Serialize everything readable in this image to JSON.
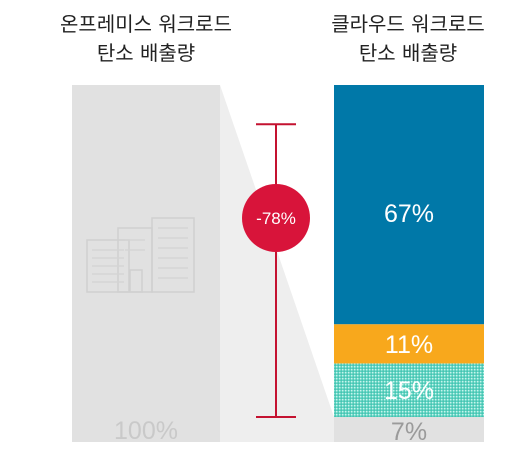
{
  "chart_data": {
    "type": "bar",
    "categories": [
      "온프레미스 워크로드\n탄소 배출량",
      "클라우드 워크로드\n탄소 배출량"
    ],
    "onprem": {
      "title_lines": [
        "온프레미스 워크로드",
        "탄소 배출량"
      ],
      "value": 100,
      "label": "100%",
      "color": "#e1e1e1",
      "label_color": "#c9c9c9",
      "icon": "office-buildings-icon"
    },
    "cloud": {
      "title_lines": [
        "클라우드 워크로드",
        "탄소 배출량"
      ],
      "segments": [
        {
          "value": 67,
          "label": "67%",
          "color": "#0078a8",
          "label_color": "#ffffff"
        },
        {
          "value": 11,
          "label": "11%",
          "color": "#f8a81c",
          "label_color": "#ffffff"
        },
        {
          "value": 15,
          "label": "15%",
          "color": "#5fd3c2",
          "label_color": "#ffffff",
          "pattern": "dotted"
        },
        {
          "value": 7,
          "label": "7%",
          "color": "#e1e1e1",
          "label_color": "#9a9a9a"
        }
      ]
    },
    "reduction": {
      "label": "-78%",
      "badge_color": "#d8143a",
      "bracket_from": 7,
      "bracket_to": 89
    },
    "ylim": [
      0,
      100
    ]
  }
}
